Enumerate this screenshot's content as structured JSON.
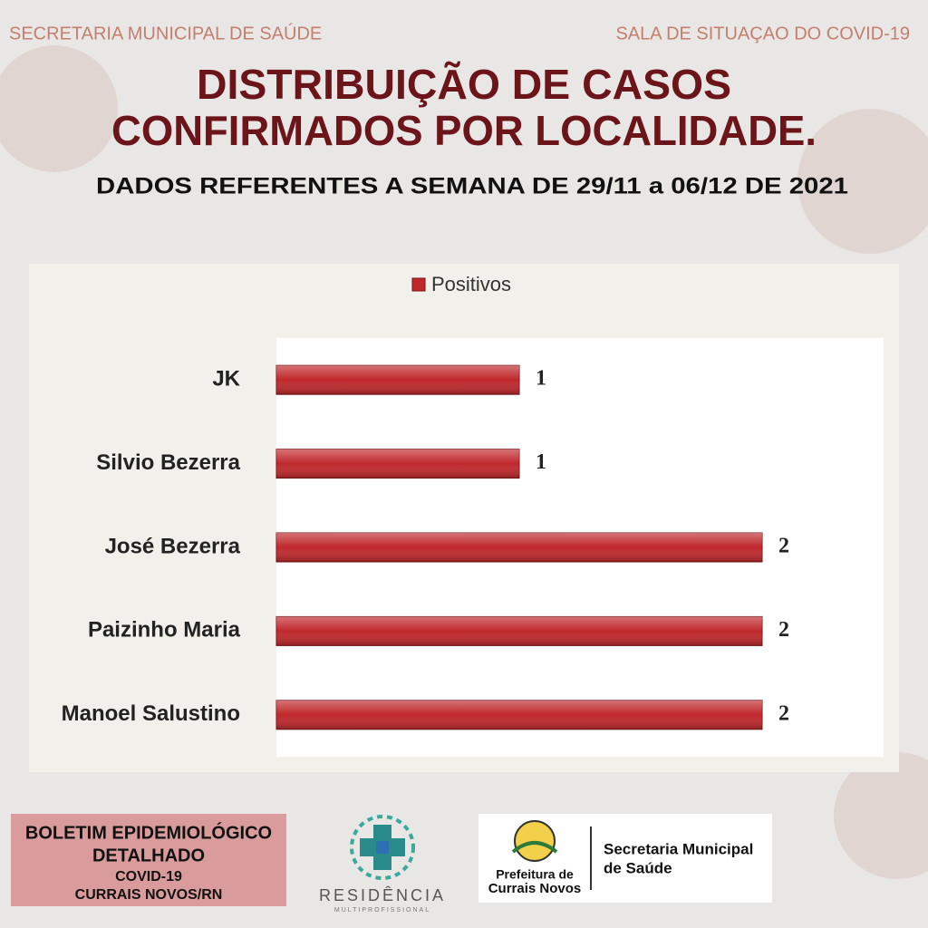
{
  "header": {
    "left": "SECRETARIA MUNICIPAL DE SAÚDE",
    "right": "SALA DE SITUAÇAO DO COVID-19"
  },
  "title": [
    "DISTRIBUIÇÃO DE CASOS",
    "CONFIRMADOS POR LOCALIDADE."
  ],
  "subtitle": "DADOS REFERENTES  A SEMANA DE  29/11 a 06/12  DE 2021",
  "chart_data": {
    "type": "bar",
    "orientation": "horizontal",
    "categories": [
      "JK",
      "Silvio Bezerra",
      "José Bezerra",
      "Paizinho Maria",
      "Manoel Salustino"
    ],
    "series": [
      {
        "name": "Positivos",
        "color": "#c0282c",
        "values": [
          1,
          1,
          2,
          2,
          2
        ]
      }
    ],
    "xlim": [
      0,
      2.5
    ],
    "legend": "top"
  },
  "footer": {
    "boletim": [
      "BOLETIM EPIDEMIOLÓGICO",
      "DETALHADO",
      "COVID-19",
      "CURRAIS NOVOS/RN"
    ],
    "residencia": "RESIDÊNCIA",
    "residencia_sub": "MULTIPROFISSIONAL",
    "prefeitura": [
      "Prefeitura de",
      "Currais Novos"
    ],
    "secretaria": [
      "Secretaria Municipal",
      "de Saúde"
    ]
  }
}
